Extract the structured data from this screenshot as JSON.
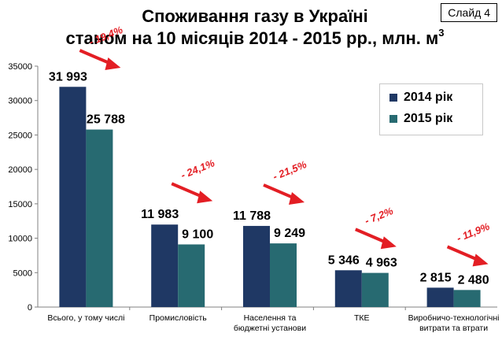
{
  "slide_label": "Слайд 4",
  "chart_data": {
    "type": "bar",
    "title_line1": "Споживання газу в Україні",
    "title_line2": "станом на 10 місяців 2014 - 2015 рр., млн. м",
    "title_sup": "3",
    "categories": [
      [
        "Всього, у тому числі"
      ],
      [
        "Промисловість"
      ],
      [
        "Населення та",
        "бюджетні установи"
      ],
      [
        "ТКЕ"
      ],
      [
        "Виробничо-технологічні",
        "витрати та втрати"
      ]
    ],
    "series": [
      {
        "name": "2014 рік",
        "color": "#1f3864",
        "values": [
          31993,
          11983,
          11788,
          5346,
          2815
        ],
        "labels": [
          "31 993",
          "11 983",
          "11 788",
          "5 346",
          "2 815"
        ]
      },
      {
        "name": "2015 рік",
        "color": "#276a71",
        "values": [
          25788,
          9100,
          9249,
          4963,
          2480
        ],
        "labels": [
          "25 788",
          "9 100",
          "9 249",
          "4 963",
          "2 480"
        ]
      }
    ],
    "changes": [
      "- 19,4%",
      "- 24,1%",
      "- 21,5%",
      "- 7,2%",
      "- 11,9%"
    ],
    "change_color": "#e31e24",
    "ylim": [
      0,
      35000
    ],
    "yticks": [
      0,
      5000,
      10000,
      15000,
      20000,
      25000,
      30000,
      35000
    ],
    "legend_position": "right",
    "grid": false
  }
}
